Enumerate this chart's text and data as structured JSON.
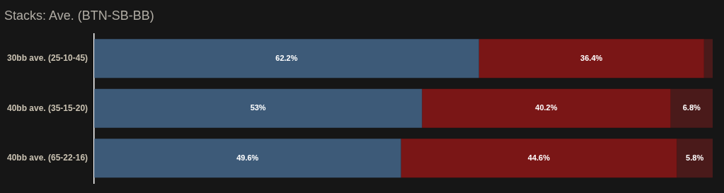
{
  "chart_data": {
    "type": "bar",
    "orientation": "horizontal",
    "stacked": true,
    "title": "Stacks: Ave. (BTN-SB-BB)",
    "categories": [
      "30bb ave. (25-10-45)",
      "40bb ave. (35-15-20)",
      "40bb ave. (65-22-16)"
    ],
    "series": [
      {
        "color": "#3d5a78",
        "values": [
          62.2,
          53,
          49.6
        ],
        "value_labels": [
          "62.2%",
          "53%",
          "49.6%"
        ]
      },
      {
        "color": "#7a1616",
        "values": [
          36.4,
          40.2,
          44.6
        ],
        "value_labels": [
          "36.4%",
          "40.2%",
          "44.6%"
        ]
      },
      {
        "color": "#4a1a1a",
        "values": [
          1.4,
          6.8,
          5.8
        ],
        "value_labels": [
          null,
          "6.8%",
          "5.8%"
        ]
      }
    ],
    "xlim": [
      0,
      100
    ],
    "tick_labels": "y",
    "grid": false,
    "legend": false
  }
}
